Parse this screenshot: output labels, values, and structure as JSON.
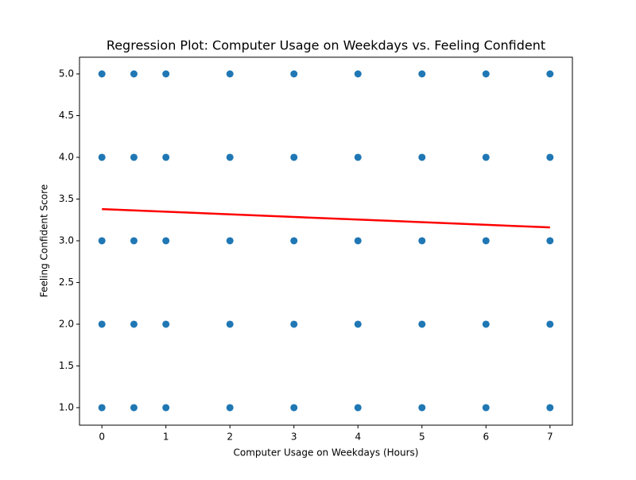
{
  "chart_data": {
    "type": "scatter",
    "title": "Regression Plot: Computer Usage on Weekdays vs. Feeling Confident",
    "xlabel": "Computer Usage on Weekdays (Hours)",
    "ylabel": "Feeling Confident Score",
    "xlim": [
      -0.35,
      7.35
    ],
    "ylim": [
      0.79,
      5.2
    ],
    "xticks": [
      0,
      1,
      2,
      3,
      4,
      5,
      6,
      7
    ],
    "yticks": [
      {
        "value": 1,
        "label": "1.0"
      },
      {
        "value": 1.5,
        "label": "1.5"
      },
      {
        "value": 2,
        "label": "2.0"
      },
      {
        "value": 2.5,
        "label": "2.5"
      },
      {
        "value": 3,
        "label": "3.0"
      },
      {
        "value": 3.5,
        "label": "3.5"
      },
      {
        "value": 4,
        "label": "4.0"
      },
      {
        "value": 4.5,
        "label": "4.5"
      },
      {
        "value": 5,
        "label": "5.0"
      }
    ],
    "series": [
      {
        "type": "scatter",
        "color": "#1f77b4",
        "x": [
          0,
          0,
          0,
          0,
          0,
          0.5,
          0.5,
          0.5,
          0.5,
          0.5,
          1,
          1,
          1,
          1,
          1,
          2,
          2,
          2,
          2,
          2,
          3,
          3,
          3,
          3,
          3,
          4,
          4,
          4,
          4,
          4,
          5,
          5,
          5,
          5,
          5,
          6,
          6,
          6,
          6,
          6,
          7,
          7,
          7,
          7,
          7
        ],
        "y": [
          1,
          2,
          3,
          4,
          5,
          1,
          2,
          3,
          4,
          5,
          1,
          2,
          3,
          4,
          5,
          1,
          2,
          3,
          4,
          5,
          1,
          2,
          3,
          4,
          5,
          1,
          2,
          3,
          4,
          5,
          1,
          2,
          3,
          4,
          5,
          1,
          2,
          3,
          4,
          5,
          1,
          2,
          3,
          4,
          5
        ]
      },
      {
        "type": "line",
        "color": "#ff0000",
        "x": [
          0,
          7
        ],
        "y": [
          3.38,
          3.16
        ]
      }
    ]
  }
}
